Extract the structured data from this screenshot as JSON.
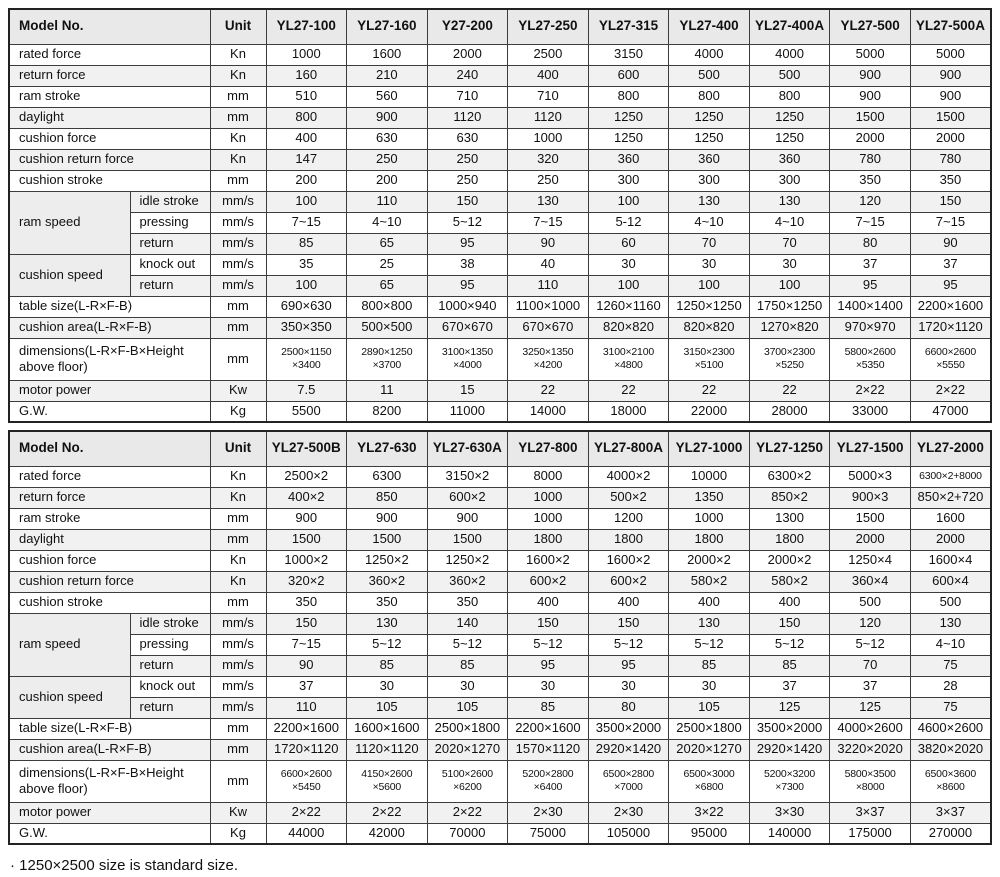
{
  "colors": {
    "header_bg": "#e9e9e9",
    "row_stripe": "#f1f1f1",
    "group_bg": "#ededed",
    "border": "#3c3c3c"
  },
  "footnote": "· 1250×2500 size is standard size.",
  "tables": [
    {
      "header": {
        "model_label": "Model No.",
        "unit_label": "Unit",
        "models": [
          "YL27-100",
          "YL27-160",
          "Y27-200",
          "YL27-250",
          "YL27-315",
          "YL27-400",
          "YL27-400A",
          "YL27-500",
          "YL27-500A"
        ]
      },
      "rows": [
        {
          "label": "rated force",
          "unit": "Kn",
          "values": [
            "1000",
            "1600",
            "2000",
            "2500",
            "3150",
            "4000",
            "4000",
            "5000",
            "5000"
          ]
        },
        {
          "label": "return force",
          "unit": "Kn",
          "values": [
            "160",
            "210",
            "240",
            "400",
            "600",
            "500",
            "500",
            "900",
            "900"
          ]
        },
        {
          "label": "ram stroke",
          "unit": "mm",
          "values": [
            "510",
            "560",
            "710",
            "710",
            "800",
            "800",
            "800",
            "900",
            "900"
          ]
        },
        {
          "label": "daylight",
          "unit": "mm",
          "values": [
            "800",
            "900",
            "1120",
            "1120",
            "1250",
            "1250",
            "1250",
            "1500",
            "1500"
          ]
        },
        {
          "label": "cushion force",
          "unit": "Kn",
          "values": [
            "400",
            "630",
            "630",
            "1000",
            "1250",
            "1250",
            "1250",
            "2000",
            "2000"
          ]
        },
        {
          "label": "cushion return force",
          "unit": "Kn",
          "values": [
            "147",
            "250",
            "250",
            "320",
            "360",
            "360",
            "360",
            "780",
            "780"
          ]
        },
        {
          "label": "cushion stroke",
          "unit": "mm",
          "values": [
            "200",
            "200",
            "250",
            "250",
            "300",
            "300",
            "300",
            "350",
            "350"
          ]
        },
        {
          "group": "ram speed",
          "groupspan": 3,
          "label": "idle stroke",
          "unit": "mm/s",
          "values": [
            "100",
            "110",
            "150",
            "130",
            "100",
            "130",
            "130",
            "120",
            "150"
          ]
        },
        {
          "ingroup": true,
          "label": "pressing",
          "unit": "mm/s",
          "values": [
            "7~15",
            "4~10",
            "5~12",
            "7~15",
            "5-12",
            "4~10",
            "4~10",
            "7~15",
            "7~15"
          ]
        },
        {
          "ingroup": true,
          "label": "return",
          "unit": "mm/s",
          "values": [
            "85",
            "65",
            "95",
            "90",
            "60",
            "70",
            "70",
            "80",
            "90"
          ]
        },
        {
          "group": "cushion speed",
          "groupspan": 2,
          "label": "knock out",
          "unit": "mm/s",
          "values": [
            "35",
            "25",
            "38",
            "40",
            "30",
            "30",
            "30",
            "37",
            "37"
          ]
        },
        {
          "ingroup": true,
          "label": "return",
          "unit": "mm/s",
          "values": [
            "100",
            "65",
            "95",
            "110",
            "100",
            "100",
            "100",
            "95",
            "95"
          ]
        },
        {
          "label": "table size(L-R×F-B)",
          "unit": "mm",
          "values": [
            "690×630",
            "800×800",
            "1000×940",
            "1100×1000",
            "1260×1160",
            "1250×1250",
            "1750×1250",
            "1400×1400",
            "2200×1600"
          ]
        },
        {
          "label": "cushion area(L-R×F-B)",
          "unit": "mm",
          "values": [
            "350×350",
            "500×500",
            "670×670",
            "670×670",
            "820×820",
            "820×820",
            "1270×820",
            "970×970",
            "1720×1120"
          ]
        },
        {
          "tall": true,
          "label": "dimensions(L-R×F-B×Height above floor)",
          "unit": "mm",
          "values": [
            "2500×1150\n×3400",
            "2890×1250\n×3700",
            "3100×1350\n×4000",
            "3250×1350\n×4200",
            "3100×2100\n×4800",
            "3150×2300\n×5100",
            "3700×2300\n×5250",
            "5800×2600\n×5350",
            "6600×2600\n×5550"
          ]
        },
        {
          "label": "motor power",
          "unit": "Kw",
          "values": [
            "7.5",
            "11",
            "15",
            "22",
            "22",
            "22",
            "22",
            "2×22",
            "2×22"
          ]
        },
        {
          "label": "G.W.",
          "unit": "Kg",
          "values": [
            "5500",
            "8200",
            "11000",
            "14000",
            "18000",
            "22000",
            "28000",
            "33000",
            "47000"
          ]
        }
      ]
    },
    {
      "header": {
        "model_label": "Model No.",
        "unit_label": "Unit",
        "models": [
          "YL27-500B",
          "YL27-630",
          "YL27-630A",
          "YL27-800",
          "YL27-800A",
          "YL27-1000",
          "YL27-1250",
          "YL27-1500",
          "YL27-2000"
        ]
      },
      "rows": [
        {
          "label": "rated force",
          "unit": "Kn",
          "values": [
            "2500×2",
            "6300",
            "3150×2",
            "8000",
            "4000×2",
            "10000",
            "6300×2",
            "5000×3",
            "6300×2+8000"
          ]
        },
        {
          "label": "return force",
          "unit": "Kn",
          "values": [
            "400×2",
            "850",
            "600×2",
            "1000",
            "500×2",
            "1350",
            "850×2",
            "900×3",
            "850×2+720"
          ]
        },
        {
          "label": "ram stroke",
          "unit": "mm",
          "values": [
            "900",
            "900",
            "900",
            "1000",
            "1200",
            "1000",
            "1300",
            "1500",
            "1600"
          ]
        },
        {
          "label": "daylight",
          "unit": "mm",
          "values": [
            "1500",
            "1500",
            "1500",
            "1800",
            "1800",
            "1800",
            "1800",
            "2000",
            "2000"
          ]
        },
        {
          "label": "cushion force",
          "unit": "Kn",
          "values": [
            "1000×2",
            "1250×2",
            "1250×2",
            "1600×2",
            "1600×2",
            "2000×2",
            "2000×2",
            "1250×4",
            "1600×4"
          ]
        },
        {
          "label": "cushion return force",
          "unit": "Kn",
          "values": [
            "320×2",
            "360×2",
            "360×2",
            "600×2",
            "600×2",
            "580×2",
            "580×2",
            "360×4",
            "600×4"
          ]
        },
        {
          "label": "cushion stroke",
          "unit": "mm",
          "values": [
            "350",
            "350",
            "350",
            "400",
            "400",
            "400",
            "400",
            "500",
            "500"
          ]
        },
        {
          "group": "ram speed",
          "groupspan": 3,
          "label": "idle stroke",
          "unit": "mm/s",
          "values": [
            "150",
            "130",
            "140",
            "150",
            "150",
            "130",
            "150",
            "120",
            "130"
          ]
        },
        {
          "ingroup": true,
          "label": "pressing",
          "unit": "mm/s",
          "values": [
            "7~15",
            "5~12",
            "5~12",
            "5~12",
            "5~12",
            "5~12",
            "5~12",
            "5~12",
            "4~10"
          ]
        },
        {
          "ingroup": true,
          "label": "return",
          "unit": "mm/s",
          "values": [
            "90",
            "85",
            "85",
            "95",
            "95",
            "85",
            "85",
            "70",
            "75"
          ]
        },
        {
          "group": "cushion speed",
          "groupspan": 2,
          "label": "knock out",
          "unit": "mm/s",
          "values": [
            "37",
            "30",
            "30",
            "30",
            "30",
            "30",
            "37",
            "37",
            "28"
          ]
        },
        {
          "ingroup": true,
          "label": "return",
          "unit": "mm/s",
          "values": [
            "110",
            "105",
            "105",
            "85",
            "80",
            "105",
            "125",
            "125",
            "75"
          ]
        },
        {
          "label": "table size(L-R×F-B)",
          "unit": "mm",
          "values": [
            "2200×1600",
            "1600×1600",
            "2500×1800",
            "2200×1600",
            "3500×2000",
            "2500×1800",
            "3500×2000",
            "4000×2600",
            "4600×2600"
          ]
        },
        {
          "label": "cushion area(L-R×F-B)",
          "unit": "mm",
          "values": [
            "1720×1120",
            "1120×1120",
            "2020×1270",
            "1570×1120",
            "2920×1420",
            "2020×1270",
            "2920×1420",
            "3220×2020",
            "3820×2020"
          ]
        },
        {
          "tall": true,
          "label": "dimensions(L-R×F-B×Height above floor)",
          "unit": "mm",
          "values": [
            "6600×2600\n×5450",
            "4150×2600\n×5600",
            "5100×2600\n×6200",
            "5200×2800\n×6400",
            "6500×2800\n×7000",
            "6500×3000\n×6800",
            "5200×3200\n×7300",
            "5800×3500\n×8000",
            "6500×3600\n×8600"
          ]
        },
        {
          "label": "motor power",
          "unit": "Kw",
          "values": [
            "2×22",
            "2×22",
            "2×22",
            "2×30",
            "2×30",
            "3×22",
            "3×30",
            "3×37",
            "3×37"
          ]
        },
        {
          "label": "G.W.",
          "unit": "Kg",
          "values": [
            "44000",
            "42000",
            "70000",
            "75000",
            "105000",
            "95000",
            "140000",
            "175000",
            "270000"
          ]
        }
      ]
    }
  ]
}
